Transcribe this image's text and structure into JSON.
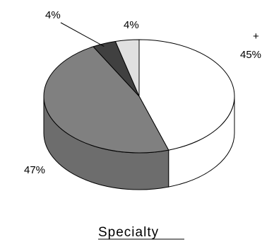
{
  "chart_data": {
    "type": "pie",
    "title": "Specialty",
    "slices": [
      {
        "label_text": "+\n45%",
        "value": 45,
        "color": "#ffffff"
      },
      {
        "label_text": "47%",
        "value": 47,
        "color": "#808080"
      },
      {
        "label_text": "4%",
        "value": 4,
        "color": "#404040"
      },
      {
        "label_text": "4%",
        "value": 4,
        "color": "#e0e0e0"
      }
    ],
    "labels": {
      "slice_0_line1": "+",
      "slice_0_line2": "45%",
      "slice_1": "47%",
      "slice_2": "4%",
      "slice_3": "4%"
    },
    "style": "3d-pie",
    "legend": "none"
  }
}
